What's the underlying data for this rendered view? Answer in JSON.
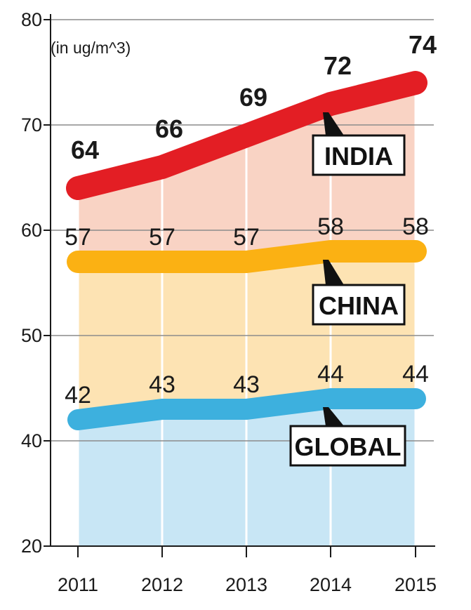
{
  "chart_data": {
    "type": "line",
    "unit_label": "(in ug/m^3)",
    "categories": [
      "2011",
      "2012",
      "2013",
      "2014",
      "2015"
    ],
    "ylim": [
      20,
      80
    ],
    "yticks": [
      "20",
      "40",
      "50",
      "60",
      "70",
      "80"
    ],
    "grid": true,
    "series": [
      {
        "name": "INDIA",
        "values": [
          64,
          66,
          69,
          72,
          74
        ],
        "labels": [
          "64",
          "66",
          "69",
          "72",
          "74"
        ],
        "color": "#e31e24",
        "fill": "#f9d3c4",
        "label_bold": true
      },
      {
        "name": "CHINA",
        "values": [
          57,
          57,
          57,
          58,
          58
        ],
        "labels": [
          "57",
          "57",
          "57",
          "58",
          "58"
        ],
        "color": "#fbb113",
        "fill": "#fde3b3",
        "label_bold": false
      },
      {
        "name": "GLOBAL",
        "values": [
          42,
          43,
          43,
          44,
          44
        ],
        "labels": [
          "42",
          "43",
          "43",
          "44",
          "44"
        ],
        "color": "#3db0de",
        "fill": "#c8e6f5",
        "label_bold": false
      }
    ]
  }
}
